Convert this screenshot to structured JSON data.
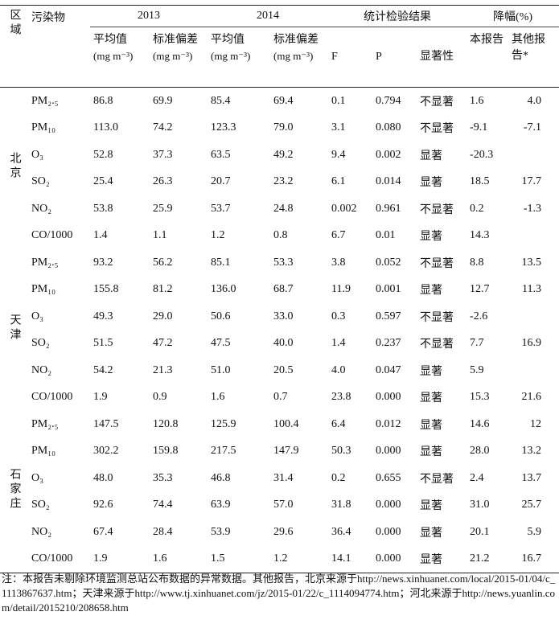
{
  "header": {
    "region": "区域",
    "pollutant": "污染物",
    "groups": [
      {
        "label": "2013",
        "cols": [
          {
            "name": "平均值",
            "unit": "(mg m⁻³)"
          },
          {
            "name": "标准偏差",
            "unit": "(mg m⁻³)"
          }
        ]
      },
      {
        "label": "2014",
        "cols": [
          {
            "name": "平均值",
            "unit": "(mg m⁻³)"
          },
          {
            "name": "标准偏差",
            "unit": "(mg m⁻³)"
          }
        ]
      },
      {
        "label": "统计检验结果",
        "cols": [
          {
            "name": "F"
          },
          {
            "name": "P"
          },
          {
            "name": "显著性"
          }
        ]
      },
      {
        "label": "降幅(%)",
        "cols": [
          {
            "name": "本报告"
          },
          {
            "name": "其他报告*"
          }
        ]
      }
    ]
  },
  "table": {
    "groups": [
      {
        "region": "北京",
        "rows": [
          [
            "PM₂.₅",
            "86.8",
            "69.9",
            "85.4",
            "69.4",
            "0.1",
            "0.794",
            "不显著",
            "1.6",
            "4.0"
          ],
          [
            "PM₁₀",
            "113.0",
            "74.2",
            "123.3",
            "79.0",
            "3.1",
            "0.080",
            "不显著",
            "-9.1",
            "-7.1"
          ],
          [
            "O₃",
            "52.8",
            "37.3",
            "63.5",
            "49.2",
            "9.4",
            "0.002",
            "显著",
            "-20.3",
            null
          ],
          [
            "SO₂",
            "25.4",
            "26.3",
            "20.7",
            "23.2",
            "6.1",
            "0.014",
            "显著",
            "18.5",
            "17.7"
          ],
          [
            "NO₂",
            "53.8",
            "25.9",
            "53.7",
            "24.8",
            "0.002",
            "0.961",
            "不显著",
            "0.2",
            "-1.3"
          ],
          [
            "CO/1000",
            "1.4",
            "1.1",
            "1.2",
            "0.8",
            "6.7",
            "0.01",
            "显著",
            "14.3",
            null
          ]
        ]
      },
      {
        "region": "天津",
        "rows": [
          [
            "PM₂.₅",
            "93.2",
            "56.2",
            "85.1",
            "53.3",
            "3.8",
            "0.052",
            "不显著",
            "8.8",
            "13.5"
          ],
          [
            "PM₁₀",
            "155.8",
            "81.2",
            "136.0",
            "68.7",
            "11.9",
            "0.001",
            "显著",
            "12.7",
            "11.3"
          ],
          [
            "O₃",
            "49.3",
            "29.0",
            "50.6",
            "33.0",
            "0.3",
            "0.597",
            "不显著",
            "-2.6",
            null
          ],
          [
            "SO₂",
            "51.5",
            "47.2",
            "47.5",
            "40.0",
            "1.4",
            "0.237",
            "不显著",
            "7.7",
            "16.9"
          ],
          [
            "NO₂",
            "54.2",
            "21.3",
            "51.0",
            "20.5",
            "4.0",
            "0.047",
            "显著",
            "5.9",
            null
          ],
          [
            "CO/1000",
            "1.9",
            "0.9",
            "1.6",
            "0.7",
            "23.8",
            "0.000",
            "显著",
            "15.3",
            "21.6"
          ]
        ]
      },
      {
        "region": "石家庄",
        "rows": [
          [
            "PM₂.₅",
            "147.5",
            "120.8",
            "125.9",
            "100.4",
            "6.4",
            "0.012",
            "显著",
            "14.6",
            "12"
          ],
          [
            "PM₁₀",
            "302.2",
            "159.8",
            "217.5",
            "147.9",
            "50.3",
            "0.000",
            "显著",
            "28.0",
            "13.2"
          ],
          [
            "O₃",
            "48.0",
            "35.3",
            "46.8",
            "31.4",
            "0.2",
            "0.655",
            "不显著",
            "2.4",
            "13.7"
          ],
          [
            "SO₂",
            "92.6",
            "74.4",
            "63.9",
            "57.0",
            "31.8",
            "0.000",
            "显著",
            "31.0",
            "25.7"
          ],
          [
            "NO₂",
            "67.4",
            "28.4",
            "53.9",
            "29.6",
            "36.4",
            "0.000",
            "显著",
            "20.1",
            "5.9"
          ],
          [
            "CO/1000",
            "1.9",
            "1.6",
            "1.5",
            "1.2",
            "14.1",
            "0.000",
            "显著",
            "21.2",
            "16.7"
          ]
        ]
      }
    ]
  },
  "footnote": "注：本报告未剔除环境监测总站公布数据的异常数据。其他报告，北京来源于http://news.xinhuanet.com/local/2015-01/04/c_1113867637.htm；天津来源于http://www.tj.xinhuanet.com/jz/2015-01/22/c_1114094774.htm；河北来源于http://news.yuanlin.com/detail/2015210/208658.htm"
}
